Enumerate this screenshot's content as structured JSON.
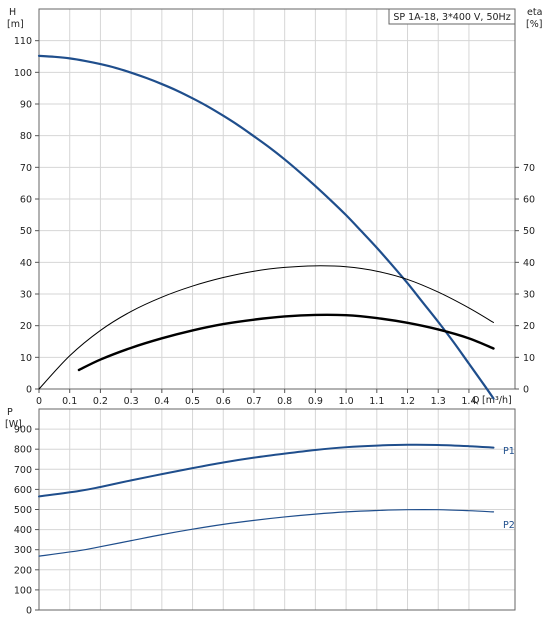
{
  "chart_data": [
    {
      "type": "line",
      "title": "SP 1A-18, 3*400 V, 50Hz",
      "ylabel": "H",
      "yunit": "[m]",
      "y2label": "eta",
      "y2unit": "[%]",
      "xlabel": "Q",
      "xunit": "[m³/h]",
      "xlim": [
        0,
        1.55
      ],
      "ylim": [
        0,
        120
      ],
      "y2lim": [
        0,
        120
      ],
      "xticks": [
        "0",
        "0.1",
        "0.2",
        "0.3",
        "0.4",
        "0.5",
        "0.6",
        "0.7",
        "0.8",
        "0.9",
        "1.0",
        "1.1",
        "1.2",
        "1.3",
        "1.4"
      ],
      "yticks": [
        0,
        10,
        20,
        30,
        40,
        50,
        60,
        70,
        80,
        90,
        100,
        110
      ],
      "y2ticks": [
        0,
        10,
        20,
        30,
        40,
        50,
        60,
        70
      ],
      "grid": true,
      "series": [
        {
          "role": "head",
          "color": "#1f4e8c",
          "x": [
            0,
            0.05,
            0.1,
            0.15,
            0.2,
            0.25,
            0.3,
            0.35,
            0.4,
            0.45,
            0.5,
            0.55,
            0.6,
            0.65,
            0.7,
            0.75,
            0.8,
            0.85,
            0.9,
            0.95,
            1.0,
            1.05,
            1.1,
            1.15,
            1.2,
            1.25,
            1.3,
            1.35,
            1.4,
            1.45,
            1.48
          ],
          "y": [
            105.2,
            104.9,
            104.4,
            103.6,
            102.6,
            101.4,
            99.9,
            98.2,
            96.3,
            94.2,
            91.8,
            89.2,
            86.3,
            83.2,
            79.8,
            76.3,
            72.5,
            68.4,
            64.1,
            59.6,
            54.9,
            49.8,
            44.6,
            39.1,
            33.4,
            27.3,
            21.2,
            14.8,
            8.0,
            1.2,
            -3.0
          ]
        },
        {
          "role": "efficiency",
          "color": "#000000",
          "x": [
            0,
            0.1,
            0.2,
            0.3,
            0.4,
            0.5,
            0.6,
            0.7,
            0.8,
            0.9,
            1.0,
            1.1,
            1.2,
            1.3,
            1.4,
            1.48
          ],
          "y": [
            0,
            10.5,
            18.5,
            24.5,
            29.0,
            32.5,
            35.2,
            37.2,
            38.4,
            38.9,
            38.6,
            37.2,
            34.6,
            30.6,
            25.6,
            21.0
          ]
        },
        {
          "role": "total efficiency",
          "color": "#000000",
          "x": [
            0.13,
            0.2,
            0.3,
            0.4,
            0.5,
            0.6,
            0.7,
            0.8,
            0.9,
            1.0,
            1.1,
            1.2,
            1.3,
            1.4,
            1.48
          ],
          "y": [
            6.0,
            9.3,
            13.0,
            16.0,
            18.5,
            20.5,
            21.9,
            22.9,
            23.4,
            23.3,
            22.4,
            20.9,
            18.8,
            16.0,
            12.8
          ]
        }
      ]
    },
    {
      "type": "line",
      "ylabel": "P",
      "yunit": "[W]",
      "xlim": [
        0,
        1.55
      ],
      "ylim": [
        0,
        1000
      ],
      "yticks": [
        0,
        100,
        200,
        300,
        400,
        500,
        600,
        700,
        800,
        900
      ],
      "grid": true,
      "series": [
        {
          "name": "P1",
          "color": "#1f4e8c",
          "x": [
            0,
            0.13,
            0.2,
            0.3,
            0.4,
            0.5,
            0.6,
            0.7,
            0.8,
            0.9,
            1.0,
            1.1,
            1.2,
            1.3,
            1.4,
            1.48
          ],
          "y": [
            565,
            592,
            612,
            645,
            676,
            706,
            734,
            758,
            778,
            796,
            810,
            818,
            822,
            821,
            815,
            808
          ]
        },
        {
          "name": "P2",
          "color": "#1f4e8c",
          "x": [
            0,
            0.13,
            0.2,
            0.3,
            0.4,
            0.5,
            0.6,
            0.7,
            0.8,
            0.9,
            1.0,
            1.1,
            1.2,
            1.3,
            1.4,
            1.48
          ],
          "y": [
            268,
            295,
            315,
            345,
            375,
            402,
            426,
            446,
            463,
            477,
            488,
            495,
            499,
            499,
            494,
            488
          ]
        }
      ]
    }
  ]
}
